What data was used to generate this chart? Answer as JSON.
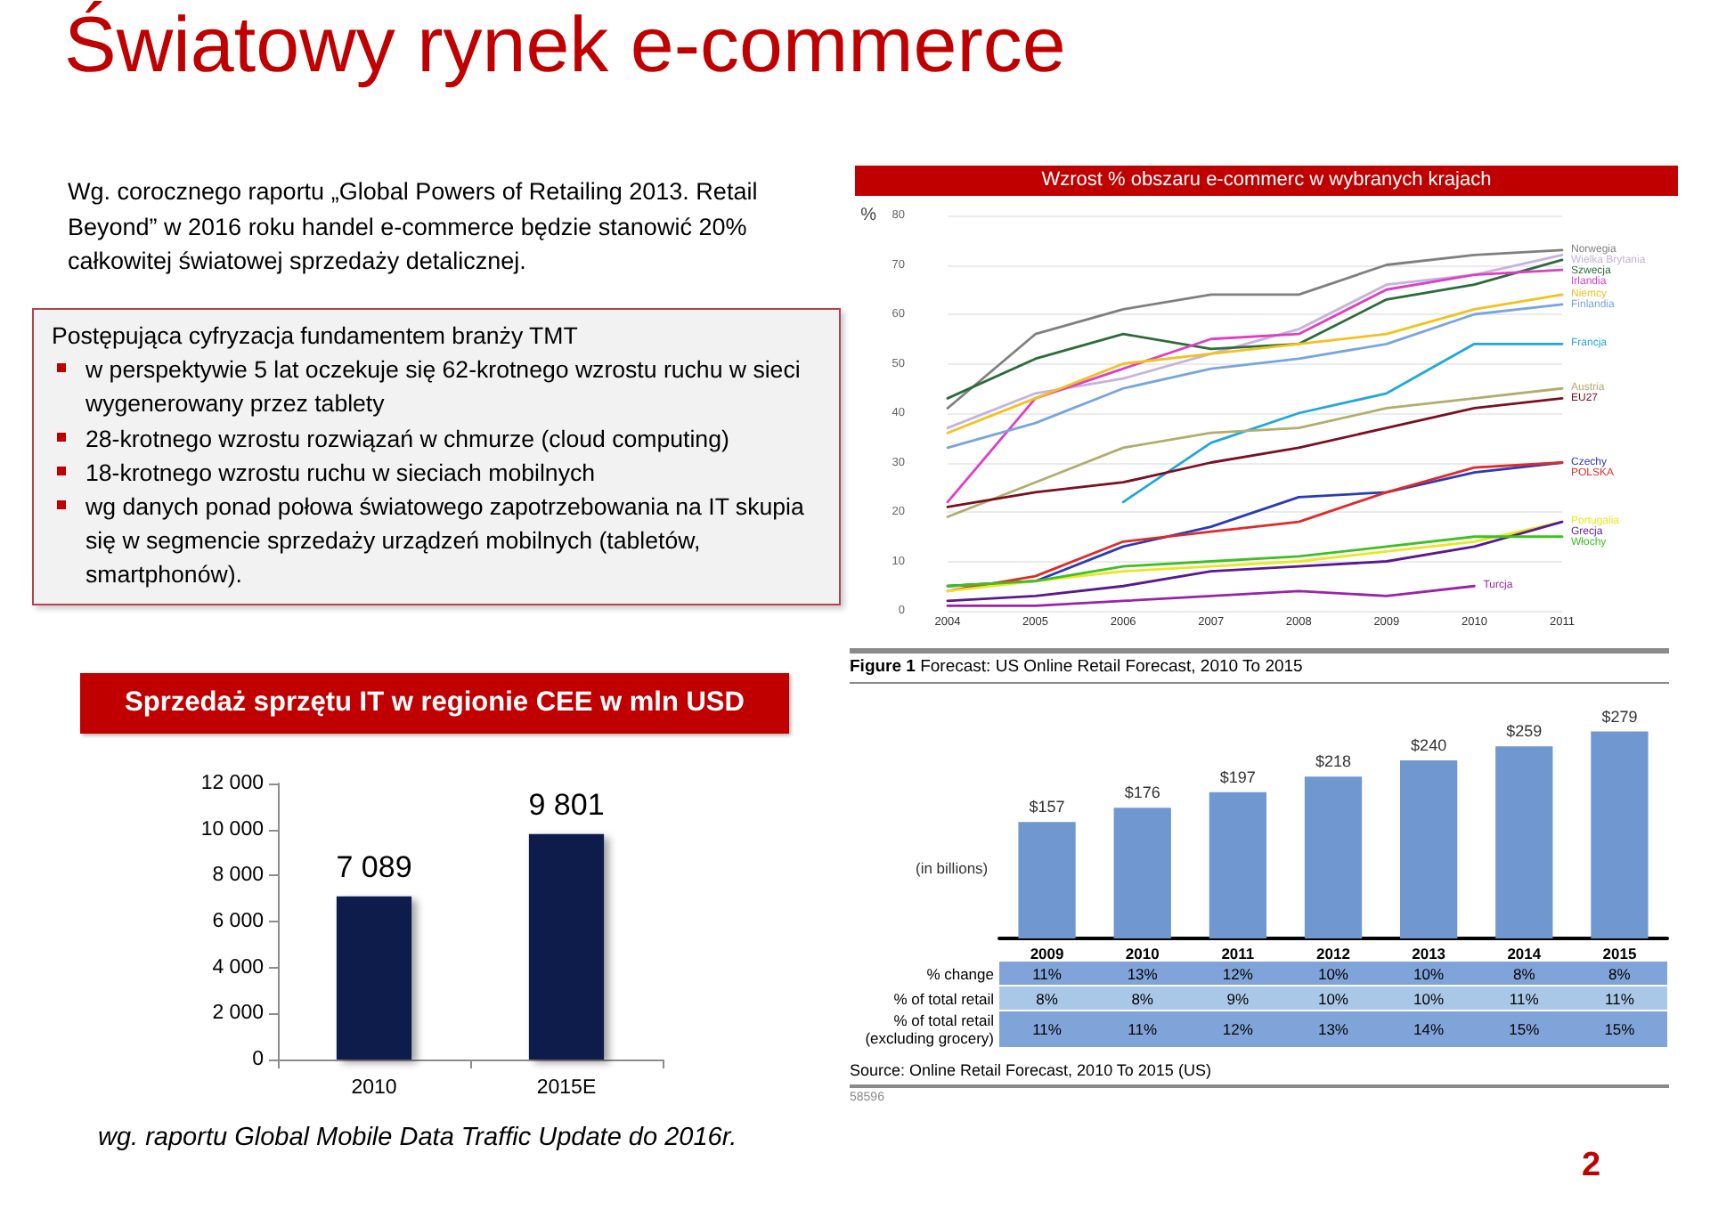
{
  "chart_data": [
    {
      "type": "other",
      "title": "Światowy rynek e-commerce",
      "subtitle": "Wg. corocznego raportu „Global Powers of Retailing 2013. Retail Beyond” w 2016 roku handel e-commerce będzie stanowić 20% całkowitej światowej sprzedaży detalicznej.",
      "annotations": [
        "2"
      ]
    },
    {
      "type": "other",
      "title": "Postępująca cyfryzacja fundamentem branży TMT",
      "annotations": [
        "w perspektywie 5 lat oczekuje się 62-krotnego wzrostu ruchu w sieci wygenerowany przez tablety",
        "28-krotnego wzrostu rozwiązań w chmurze (cloud computing)",
        "18-krotnego wzrostu ruchu w sieciach mobilnych",
        "wg danych ponad połowa światowego zapotrzebowania na IT skupia się w segmencie sprzedaży urządzeń mobilnych (tabletów, smartphonów)."
      ]
    },
    {
      "type": "line",
      "title": "Wzrost % obszaru e-commerc w wybranych krajach",
      "ylabel": "%",
      "categories": [
        "2004",
        "2005",
        "2006",
        "2007",
        "2008",
        "2009",
        "2010",
        "2011"
      ],
      "ylim": [
        0,
        80
      ],
      "yticks": [
        0,
        10,
        20,
        30,
        40,
        50,
        60,
        70,
        80
      ],
      "grid": "y",
      "series": [
        {
          "name": "Norwegia",
          "color": "#7f7f7f",
          "values": [
            41,
            56,
            61,
            64,
            64,
            70,
            72,
            73
          ]
        },
        {
          "name": "Wielka Brytania",
          "color": "#c6b2de",
          "values": [
            37,
            44,
            47,
            52,
            57,
            66,
            68,
            72
          ]
        },
        {
          "name": "Szwecja",
          "color": "#2d6b3c",
          "values": [
            43,
            51,
            56,
            53,
            54,
            63,
            66,
            71
          ]
        },
        {
          "name": "Irlandia",
          "color": "#de3fc4",
          "values": [
            22,
            43,
            49,
            55,
            56,
            65,
            68,
            69
          ]
        },
        {
          "name": "Niemcy",
          "color": "#f2c21c",
          "values": [
            36,
            43,
            50,
            52,
            54,
            56,
            61,
            64
          ]
        },
        {
          "name": "Finlandia",
          "color": "#78a5dc",
          "values": [
            33,
            38,
            45,
            49,
            51,
            54,
            60,
            62
          ]
        },
        {
          "name": "Francja",
          "color": "#22a7d8",
          "values": [
            null,
            null,
            22,
            34,
            40,
            44,
            54,
            54
          ]
        },
        {
          "name": "Austria",
          "color": "#b1ad6e",
          "values": [
            19,
            26,
            33,
            36,
            37,
            41,
            43,
            45
          ]
        },
        {
          "name": "EU27",
          "color": "#7a0f20",
          "values": [
            21,
            24,
            26,
            30,
            33,
            37,
            41,
            43
          ]
        },
        {
          "name": "Czechy",
          "color": "#2a3bb6",
          "values": [
            5,
            6,
            13,
            17,
            23,
            24,
            28,
            30
          ]
        },
        {
          "name": "POLSKA",
          "color": "#e02a2a",
          "values": [
            4,
            7,
            14,
            16,
            18,
            24,
            29,
            30
          ]
        },
        {
          "name": "Portugalia",
          "color": "#e8e820",
          "values": [
            4,
            6,
            8,
            9,
            10,
            12,
            14,
            18
          ]
        },
        {
          "name": "Grecja",
          "color": "#5a1890",
          "values": [
            2,
            3,
            5,
            8,
            9,
            10,
            13,
            18
          ]
        },
        {
          "name": "Włochy",
          "color": "#3fbf22",
          "values": [
            5,
            6,
            9,
            10,
            11,
            13,
            15,
            15
          ]
        },
        {
          "name": "Turcja",
          "color": "#9a22a8",
          "values": [
            1,
            1,
            2,
            3,
            4,
            3,
            5,
            null
          ]
        }
      ]
    },
    {
      "type": "bar",
      "title": "Sprzedaż sprzętu IT w regionie CEE w mln USD",
      "categories": [
        "2010",
        "2015E"
      ],
      "values": [
        7089,
        9801
      ],
      "color": "#0d1e4c",
      "ylim": [
        0,
        12000
      ],
      "yticks": [
        0,
        {
          "value": 2000,
          "label": "2 000"
        },
        {
          "value": 4000,
          "label": "4 000"
        },
        {
          "value": 6000,
          "label": "6 000"
        },
        {
          "value": 8000,
          "label": "8 000"
        },
        {
          "value": 10000,
          "label": "10 000"
        },
        {
          "value": 12000,
          "label": "12 000"
        }
      ],
      "value_labels": [
        "7 089",
        "9 801"
      ],
      "annotations": [
        "wg. raportu Global Mobile Data Traffic Update do 2016r."
      ]
    },
    {
      "type": "bar",
      "title": "Figure 1",
      "subtitle": "Forecast: US Online Retail Forecast, 2010 To 2015",
      "ylabel": "(in billions)",
      "categories": [
        "2009",
        "2010",
        "2011",
        "2012",
        "2013",
        "2014",
        "2015"
      ],
      "values": [
        157,
        176,
        197,
        218,
        240,
        259,
        279
      ],
      "color": "#7097d0",
      "value_labels": [
        "$157",
        "$176",
        "$197",
        "$218",
        "$240",
        "$259",
        "$279"
      ],
      "annotations": [
        "% change",
        "11%",
        "13%",
        "12%",
        "10%",
        "10%",
        "8%",
        "8%",
        "% of total retail",
        "8%",
        "8%",
        "9%",
        "10%",
        "10%",
        "11%",
        "11%",
        "% of total retail (excluding grocery)",
        "11%",
        "11%",
        "12%",
        "13%",
        "14%",
        "15%",
        "15%",
        "Source: Online Retail Forecast, 2010 To 2015 (US)",
        "58596"
      ]
    }
  ]
}
